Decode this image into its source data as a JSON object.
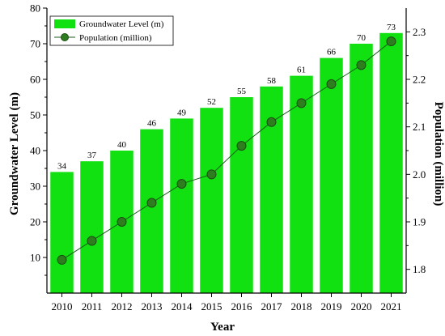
{
  "chart_data": {
    "type": "bar",
    "categories": [
      "2010",
      "2011",
      "2012",
      "2013",
      "2014",
      "2015",
      "2016",
      "2017",
      "2018",
      "2019",
      "2020",
      "2021"
    ],
    "series": [
      {
        "name": "Groundwater Level (m)",
        "type": "bar",
        "axis": "left",
        "values": [
          34,
          37,
          40,
          46,
          49,
          52,
          55,
          58,
          61,
          66,
          70,
          73
        ],
        "data_labels": [
          "34",
          "37",
          "40",
          "46",
          "49",
          "52",
          "55",
          "58",
          "61",
          "66",
          "70",
          "73"
        ]
      },
      {
        "name": "Population (million)",
        "type": "line",
        "axis": "right",
        "values": [
          1.82,
          1.86,
          1.9,
          1.94,
          1.98,
          2.0,
          2.06,
          2.11,
          2.15,
          2.19,
          2.23,
          2.28
        ]
      }
    ],
    "xlabel": "Year",
    "ylabel": "Groundwater Level (m)",
    "y2label": "Population (million)",
    "ylim": [
      0,
      80
    ],
    "y2lim": [
      1.75,
      2.35
    ],
    "yticks": [
      "10",
      "20",
      "30",
      "40",
      "50",
      "60",
      "70",
      "80"
    ],
    "y2ticks": [
      "1.8",
      "1.9",
      "2.0",
      "2.1",
      "2.2",
      "2.3"
    ],
    "grid": false,
    "legend_position": "top-left",
    "colors": {
      "bar": "#11e011",
      "line": "#1a5c1a",
      "marker_fill": "#2e7d1e",
      "marker_edge": "#1a4d12"
    }
  }
}
